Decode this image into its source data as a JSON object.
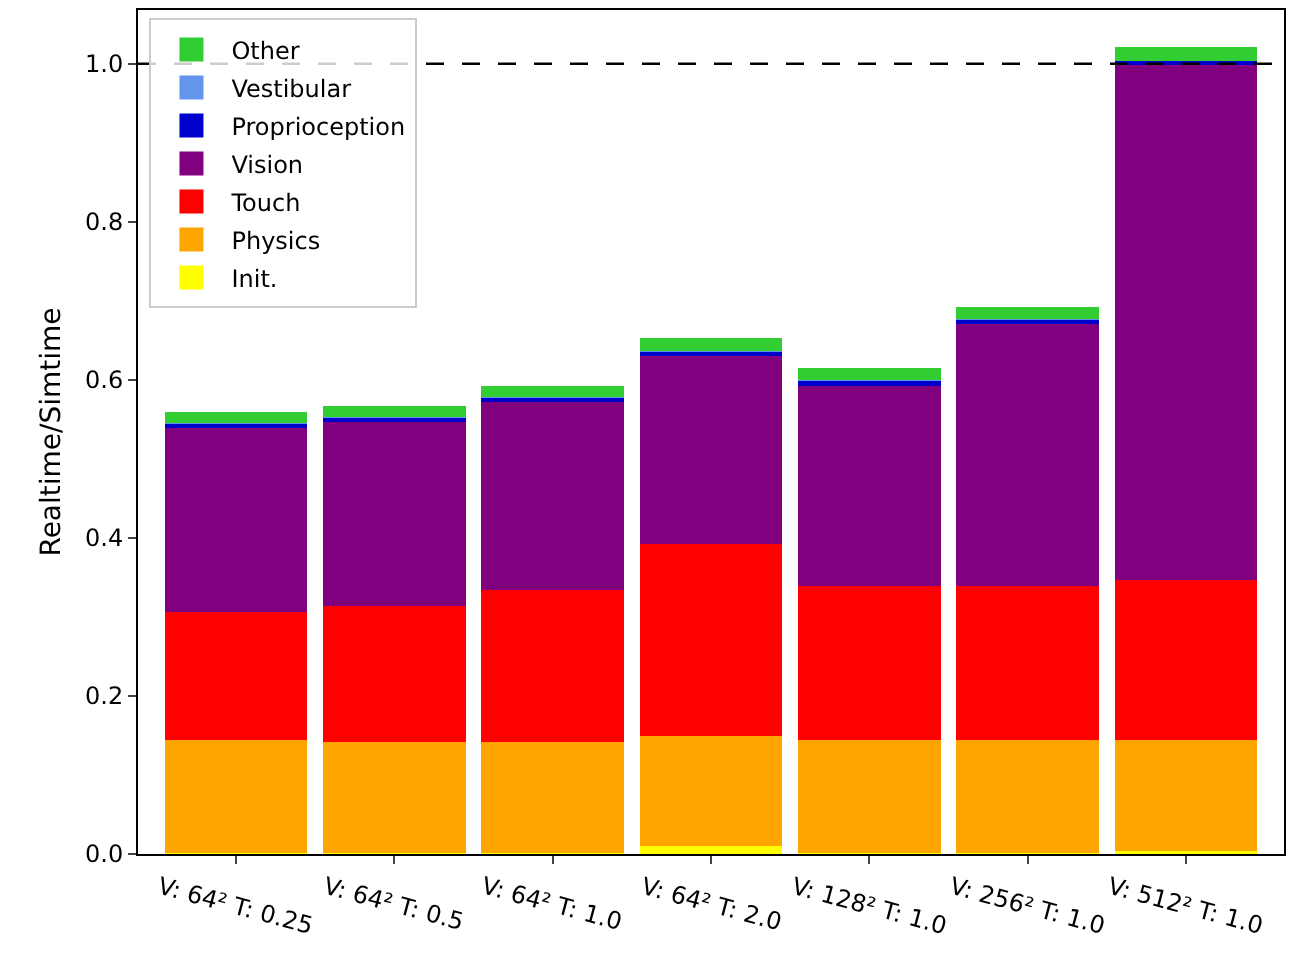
{
  "chart_data": {
    "type": "bar",
    "stacked": true,
    "ylabel": "Realtime/Simtime",
    "categories": [
      "V: 64² T: 0.25",
      "V: 64² T: 0.5",
      "V: 64² T: 1.0",
      "V: 64² T: 2.0",
      "V: 128² T: 1.0",
      "V: 256² T: 1.0",
      "V: 512² T: 1.0"
    ],
    "series": [
      {
        "name": "Init.",
        "color": "#ffff00",
        "values": [
          0.001,
          0.001,
          0.001,
          0.01,
          0.001,
          0.001,
          0.004
        ]
      },
      {
        "name": "Physics",
        "color": "#ffa500",
        "values": [
          0.143,
          0.141,
          0.141,
          0.139,
          0.143,
          0.143,
          0.14
        ]
      },
      {
        "name": "Touch",
        "color": "#ff0000",
        "values": [
          0.162,
          0.172,
          0.192,
          0.243,
          0.195,
          0.195,
          0.203
        ]
      },
      {
        "name": "Vision",
        "color": "#800080",
        "values": [
          0.233,
          0.233,
          0.238,
          0.238,
          0.253,
          0.332,
          0.652
        ]
      },
      {
        "name": "Proprioception",
        "color": "#0000cd",
        "values": [
          0.005,
          0.005,
          0.005,
          0.005,
          0.007,
          0.005,
          0.004
        ]
      },
      {
        "name": "Vestibular",
        "color": "#6495ed",
        "values": [
          0.001,
          0.001,
          0.001,
          0.001,
          0.001,
          0.001,
          null
        ]
      },
      {
        "name": "Other",
        "color": "#32cd32",
        "values": [
          0.014,
          0.014,
          0.014,
          0.017,
          0.015,
          0.015,
          0.018
        ]
      }
    ],
    "ylim": [
      0,
      1.068
    ],
    "yticks": [
      {
        "value": 0,
        "label": "0.0"
      },
      {
        "value": 0.2,
        "label": "0.2"
      },
      {
        "value": 0.4,
        "label": "0.4"
      },
      {
        "value": 0.6,
        "label": "0.6"
      },
      {
        "value": 0.8,
        "label": "0.8"
      },
      {
        "value": 1,
        "label": "1.0"
      }
    ],
    "ref_lines": [
      {
        "axis": "y",
        "value": 1.0,
        "color": "#000000",
        "line_style": "dashed"
      }
    ],
    "legend": "top left",
    "grid": false
  }
}
